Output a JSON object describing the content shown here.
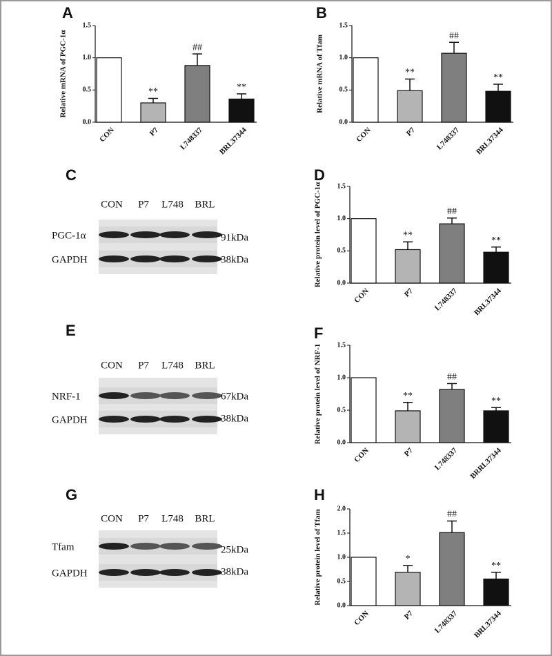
{
  "chart_data": [
    {
      "type": "bar",
      "panel": "A",
      "ylabel": "Relative mRNA of PGC-1α",
      "categories": [
        "CON",
        "P7",
        "L748337",
        "BRL37344"
      ],
      "values": [
        1.0,
        0.3,
        0.88,
        0.36
      ],
      "errors": [
        0,
        0.07,
        0.18,
        0.08
      ],
      "annotations": [
        null,
        "**",
        "##",
        "**"
      ],
      "colors": [
        "#ffffff",
        "#b4b4b4",
        "#7f7f7f",
        "#111111"
      ],
      "ylim": [
        0,
        1.5
      ],
      "yticks": [
        {
          "value": 0,
          "label": "0.0"
        },
        0.5,
        {
          "value": 1,
          "label": "1.0"
        },
        1.5
      ]
    },
    {
      "type": "bar",
      "panel": "B",
      "ylabel": "Relative mRNA of Tfam",
      "categories": [
        "CON",
        "P7",
        "L748337",
        "BRL37344"
      ],
      "values": [
        1.0,
        0.49,
        1.07,
        0.48
      ],
      "errors": [
        0,
        0.18,
        0.17,
        0.11
      ],
      "annotations": [
        null,
        "**",
        "##",
        "**"
      ],
      "colors": [
        "#ffffff",
        "#b4b4b4",
        "#7f7f7f",
        "#111111"
      ],
      "ylim": [
        0,
        1.5
      ],
      "yticks": [
        {
          "value": 0,
          "label": "0.0"
        },
        0.5,
        {
          "value": 1,
          "label": "1.0"
        },
        1.5
      ]
    },
    {
      "type": "bar",
      "panel": "D",
      "ylabel": "Relative protein level of PGC-1α",
      "categories": [
        "CON",
        "P7",
        "L748337",
        "BRL37344"
      ],
      "values": [
        1.0,
        0.52,
        0.92,
        0.48
      ],
      "errors": [
        0,
        0.12,
        0.09,
        0.08
      ],
      "annotations": [
        null,
        "**",
        "##",
        "**"
      ],
      "colors": [
        "#ffffff",
        "#b4b4b4",
        "#7f7f7f",
        "#111111"
      ],
      "ylim": [
        0,
        1.5
      ],
      "yticks": [
        {
          "value": 0,
          "label": "0.0"
        },
        0.5,
        {
          "value": 1,
          "label": "1.0"
        },
        1.5
      ]
    },
    {
      "type": "bar",
      "panel": "F",
      "ylabel": "Relative protein level of NRF-1",
      "categories": [
        "CON",
        "P7",
        "L748337",
        "BRRL37344"
      ],
      "values": [
        1.0,
        0.49,
        0.82,
        0.49
      ],
      "errors": [
        0,
        0.13,
        0.09,
        0.05
      ],
      "annotations": [
        null,
        "**",
        "##",
        "**"
      ],
      "colors": [
        "#ffffff",
        "#b4b4b4",
        "#7f7f7f",
        "#111111"
      ],
      "ylim": [
        0,
        1.5
      ],
      "yticks": [
        {
          "value": 0,
          "label": "0.0"
        },
        0.5,
        {
          "value": 1,
          "label": "1.0"
        },
        1.5
      ]
    },
    {
      "type": "bar",
      "panel": "H",
      "ylabel": "Relative protein level of Tfam",
      "categories": [
        "CON",
        "P7",
        "L748337",
        "BRL37344"
      ],
      "values": [
        1.0,
        0.69,
        1.51,
        0.55
      ],
      "errors": [
        0,
        0.14,
        0.24,
        0.14
      ],
      "annotations": [
        null,
        "*",
        "##",
        "**"
      ],
      "colors": [
        "#ffffff",
        "#b4b4b4",
        "#7f7f7f",
        "#111111"
      ],
      "ylim": [
        0,
        2
      ],
      "yticks": [
        {
          "value": 0,
          "label": "0.0"
        },
        0.5,
        {
          "value": 1,
          "label": "1.0"
        },
        1.5,
        {
          "value": 2,
          "label": "2.0"
        }
      ]
    }
  ],
  "blots": [
    {
      "panel": "C",
      "lanes": [
        "CON",
        "P7",
        "L748",
        "BRL"
      ],
      "rows": [
        {
          "label": "PGC-1α",
          "size": "91kDa"
        },
        {
          "label": "GAPDH",
          "size": "38kDa"
        }
      ]
    },
    {
      "panel": "E",
      "lanes": [
        "CON",
        "P7",
        "L748",
        "BRL"
      ],
      "rows": [
        {
          "label": "NRF-1",
          "size": "67kDa"
        },
        {
          "label": "GAPDH",
          "size": "38kDa"
        }
      ]
    },
    {
      "panel": "G",
      "lanes": [
        "CON",
        "P7",
        "L748",
        "BRL"
      ],
      "rows": [
        {
          "label": "Tfam",
          "size": "25kDa"
        },
        {
          "label": "GAPDH",
          "size": "38kDa"
        }
      ]
    }
  ]
}
